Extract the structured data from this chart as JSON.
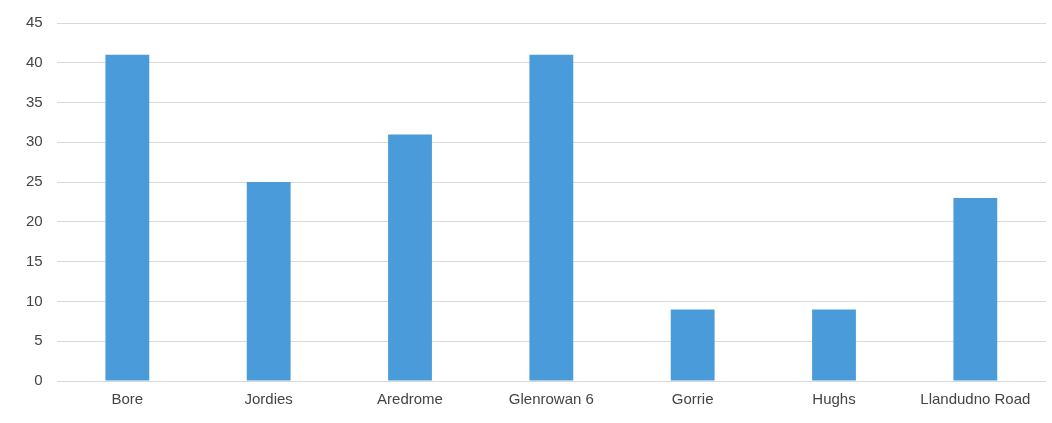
{
  "chart_data": {
    "type": "bar",
    "categories": [
      "Bore",
      "Jordies",
      "Aredrome",
      "Glenrowan 6",
      "Gorrie",
      "Hughs",
      "Llandudno Road"
    ],
    "values": [
      41,
      25,
      31,
      41,
      9,
      9,
      23
    ],
    "color": "#4a9bd9",
    "ylim": [
      0,
      45
    ],
    "yticks": [
      0,
      5,
      10,
      15,
      20,
      25,
      30,
      35,
      40,
      45
    ],
    "grid": "y",
    "legend": false
  }
}
